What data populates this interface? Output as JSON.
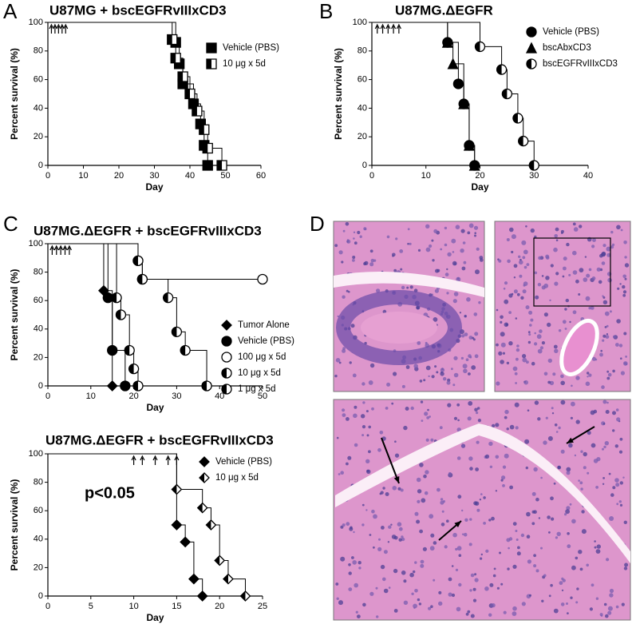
{
  "chart_data": [
    {
      "type": "line",
      "panel": "A",
      "title": "U87MG + bscEGFRvIIIxCD3",
      "x_label": "Day",
      "y_label": "Percent survival (%)",
      "xlim": [
        0,
        60
      ],
      "xticks": [
        0,
        10,
        20,
        30,
        40,
        50,
        60
      ],
      "ylim": [
        0,
        100
      ],
      "yticks": [
        0,
        20,
        40,
        60,
        80,
        100
      ],
      "legend": "right",
      "dose_days": [
        1,
        2,
        3,
        4,
        5
      ],
      "series": [
        {
          "name": "Vehicle (PBS)",
          "color": "#000000",
          "marker": "square",
          "fill": "solid",
          "x": [
            0,
            36,
            37,
            38,
            41,
            43,
            44,
            45
          ],
          "values": [
            100,
            86,
            71,
            57,
            43,
            29,
            14,
            0
          ]
        },
        {
          "name": "10 μg x 5d",
          "color": "#000000",
          "marker": "square",
          "fill": "half",
          "x": [
            0,
            35,
            36,
            38,
            40,
            42,
            44,
            45,
            49
          ],
          "values": [
            100,
            88,
            75,
            62,
            50,
            38,
            25,
            12,
            0
          ]
        }
      ]
    },
    {
      "type": "line",
      "panel": "B",
      "title": "U87MG.ΔEGFR",
      "x_label": "Day",
      "y_label": "Percent survival (%)",
      "xlim": [
        0,
        40
      ],
      "xticks": [
        0,
        10,
        20,
        30,
        40
      ],
      "ylim": [
        0,
        100
      ],
      "yticks": [
        0,
        20,
        40,
        60,
        80,
        100
      ],
      "legend": "right",
      "dose_days": [
        1,
        2,
        3,
        4,
        5
      ],
      "series": [
        {
          "name": "Vehicle (PBS)",
          "color": "#000000",
          "marker": "circle",
          "fill": "solid",
          "x": [
            0,
            14,
            16,
            17,
            18,
            19
          ],
          "values": [
            100,
            86,
            57,
            43,
            14,
            0
          ]
        },
        {
          "name": "bscAbxCD3",
          "color": "#000000",
          "marker": "triangle",
          "fill": "solid",
          "x": [
            0,
            14,
            15,
            17,
            18,
            19
          ],
          "values": [
            100,
            86,
            71,
            43,
            14,
            0
          ]
        },
        {
          "name": "bscEGFRvIIIxCD3",
          "color": "#000000",
          "marker": "circle",
          "fill": "half",
          "x": [
            0,
            20,
            24,
            25,
            27,
            28,
            30
          ],
          "values": [
            100,
            83,
            67,
            50,
            33,
            17,
            0
          ]
        }
      ]
    },
    {
      "type": "line",
      "panel": "C",
      "title": "U87MG.ΔEGFR + bscEGFRvIIIxCD3",
      "x_label": "Day",
      "y_label": "Percent survival (%)",
      "xlim": [
        0,
        50
      ],
      "xticks": [
        0,
        10,
        20,
        30,
        40,
        50
      ],
      "ylim": [
        0,
        100
      ],
      "yticks": [
        0,
        20,
        40,
        60,
        80,
        100
      ],
      "legend": "right",
      "dose_days": [
        1,
        2,
        3,
        4,
        5
      ],
      "series": [
        {
          "name": "Tumor Alone",
          "color": "#000000",
          "marker": "diamond",
          "fill": "solid",
          "x": [
            0,
            13,
            15
          ],
          "values": [
            100,
            67,
            0
          ]
        },
        {
          "name": "Vehicle (PBS)",
          "color": "#000000",
          "marker": "circle",
          "fill": "solid",
          "x": [
            0,
            14,
            15,
            18
          ],
          "values": [
            100,
            62,
            25,
            0
          ]
        },
        {
          "name": "100 μg x 5d",
          "color": "#000000",
          "marker": "circle",
          "fill": "none",
          "x": [
            0,
            21,
            22,
            50
          ],
          "values": [
            100,
            88,
            75,
            75
          ]
        },
        {
          "name": "10 μg x 5d",
          "color": "#000000",
          "marker": "circle",
          "fill": "half",
          "x": [
            0,
            21,
            22,
            28,
            30,
            32,
            37
          ],
          "values": [
            100,
            88,
            75,
            62,
            38,
            25,
            0
          ]
        },
        {
          "name": "1 μg x 5d",
          "color": "#000000",
          "marker": "circle",
          "fill": "half",
          "x": [
            0,
            16,
            17,
            19,
            20,
            21
          ],
          "values": [
            100,
            62,
            50,
            25,
            12,
            0
          ]
        }
      ]
    },
    {
      "type": "line",
      "title": "U87MG.ΔEGFR + bscEGFRvIIIxCD3",
      "x_label": "Day",
      "y_label": "Percent survival (%)",
      "annotation": "p<0.05",
      "xlim": [
        0,
        25
      ],
      "xticks": [
        0,
        5,
        10,
        15,
        20,
        25
      ],
      "ylim": [
        0,
        100
      ],
      "yticks": [
        0,
        20,
        40,
        60,
        80,
        100
      ],
      "legend": "right",
      "dose_days": [
        10,
        11,
        12.5,
        14,
        15
      ],
      "series": [
        {
          "name": "Vehicle (PBS)",
          "color": "#000000",
          "marker": "diamond",
          "fill": "solid",
          "x": [
            0,
            15,
            16,
            17,
            18
          ],
          "values": [
            100,
            50,
            38,
            12,
            0
          ]
        },
        {
          "name": "10 μg x 5d",
          "color": "#000000",
          "marker": "diamond",
          "fill": "half",
          "x": [
            0,
            15,
            18,
            19,
            20,
            21,
            23
          ],
          "values": [
            100,
            75,
            62,
            50,
            25,
            12,
            0
          ]
        }
      ]
    }
  ],
  "histology": {
    "panel": "D"
  }
}
